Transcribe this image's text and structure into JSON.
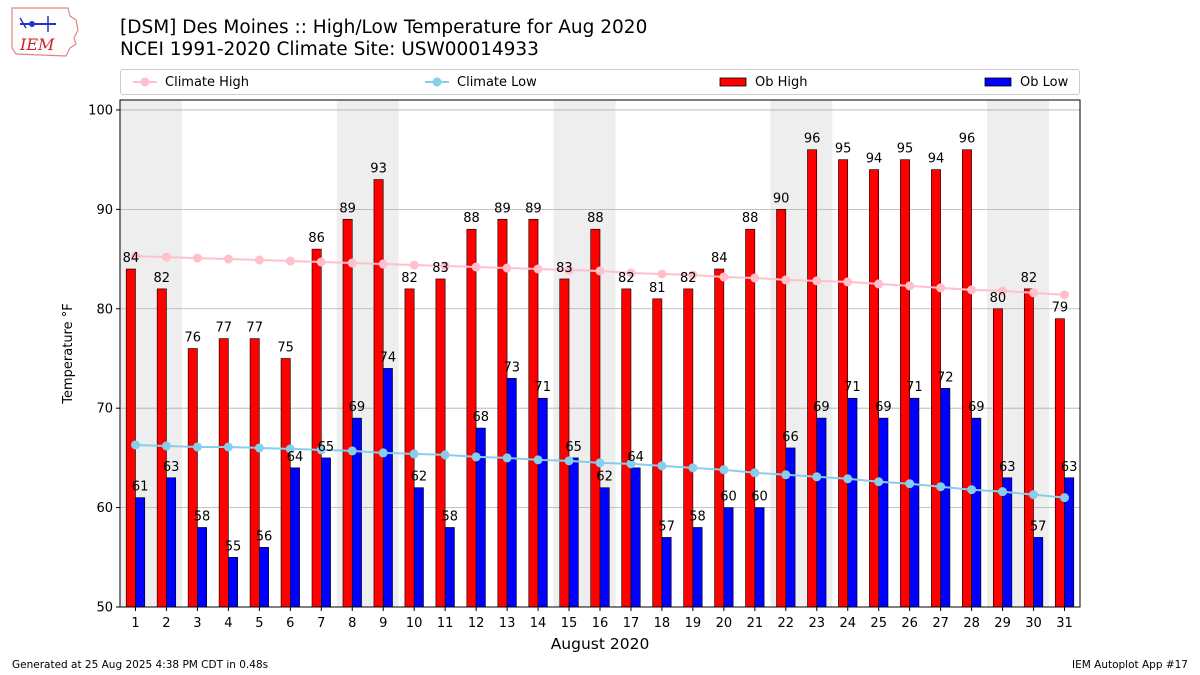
{
  "logo": {
    "text": "IEM"
  },
  "header": {
    "title_line1": "[DSM] Des Moines :: High/Low Temperature for Aug 2020",
    "title_line2": "NCEI 1991-2020 Climate Site: USW00014933"
  },
  "footer": {
    "generated": "Generated at 25 Aug 2025 4:38 PM CDT in 0.48s",
    "app": "IEM Autoplot App #17"
  },
  "colors": {
    "ob_high": "#ff0000",
    "ob_low": "#0000ff",
    "climate_high": "#ffc0cb",
    "climate_low": "#87ceeb",
    "weekend_band": "#eeeeee",
    "grid": "#b0b0b0"
  },
  "chart_data": {
    "type": "bar",
    "xlabel": "August 2020",
    "ylabel": "Temperature °F",
    "ylim": [
      50,
      101
    ],
    "yticks": [
      50,
      60,
      70,
      80,
      90,
      100
    ],
    "grid": "horizontal",
    "legend_position": "top",
    "legend_entries": [
      "Climate High",
      "Climate Low",
      "Ob High",
      "Ob Low"
    ],
    "categories": [
      "1",
      "2",
      "3",
      "4",
      "5",
      "6",
      "7",
      "8",
      "9",
      "10",
      "11",
      "12",
      "13",
      "14",
      "15",
      "16",
      "17",
      "18",
      "19",
      "20",
      "21",
      "22",
      "23",
      "24",
      "25",
      "26",
      "27",
      "28",
      "29",
      "30",
      "31"
    ],
    "shaded_days": [
      1,
      2,
      8,
      9,
      15,
      16,
      22,
      23,
      29,
      30
    ],
    "series": [
      {
        "name": "Ob High",
        "kind": "bar",
        "values": [
          84,
          82,
          76,
          77,
          77,
          75,
          86,
          89,
          93,
          82,
          83,
          88,
          89,
          89,
          83,
          88,
          82,
          81,
          82,
          84,
          88,
          90,
          96,
          95,
          94,
          95,
          94,
          96,
          80,
          82,
          79
        ]
      },
      {
        "name": "Ob Low",
        "kind": "bar",
        "values": [
          61,
          63,
          58,
          55,
          56,
          64,
          65,
          69,
          74,
          62,
          58,
          68,
          73,
          71,
          65,
          62,
          64,
          57,
          58,
          60,
          60,
          66,
          69,
          71,
          69,
          71,
          72,
          69,
          63,
          57,
          63
        ]
      },
      {
        "name": "Climate High",
        "kind": "line",
        "values": [
          85.3,
          85.2,
          85.1,
          85.0,
          84.9,
          84.8,
          84.7,
          84.6,
          84.5,
          84.4,
          84.3,
          84.2,
          84.1,
          84.0,
          83.9,
          83.8,
          83.6,
          83.5,
          83.4,
          83.2,
          83.1,
          82.9,
          82.8,
          82.7,
          82.5,
          82.3,
          82.1,
          81.9,
          81.8,
          81.6,
          81.4
        ]
      },
      {
        "name": "Climate Low",
        "kind": "line",
        "values": [
          66.3,
          66.2,
          66.1,
          66.1,
          66.0,
          65.9,
          65.8,
          65.7,
          65.5,
          65.4,
          65.3,
          65.1,
          65.0,
          64.8,
          64.7,
          64.5,
          64.4,
          64.2,
          64.0,
          63.8,
          63.5,
          63.3,
          63.1,
          62.9,
          62.6,
          62.4,
          62.1,
          61.8,
          61.6,
          61.3,
          61.0
        ]
      }
    ]
  }
}
